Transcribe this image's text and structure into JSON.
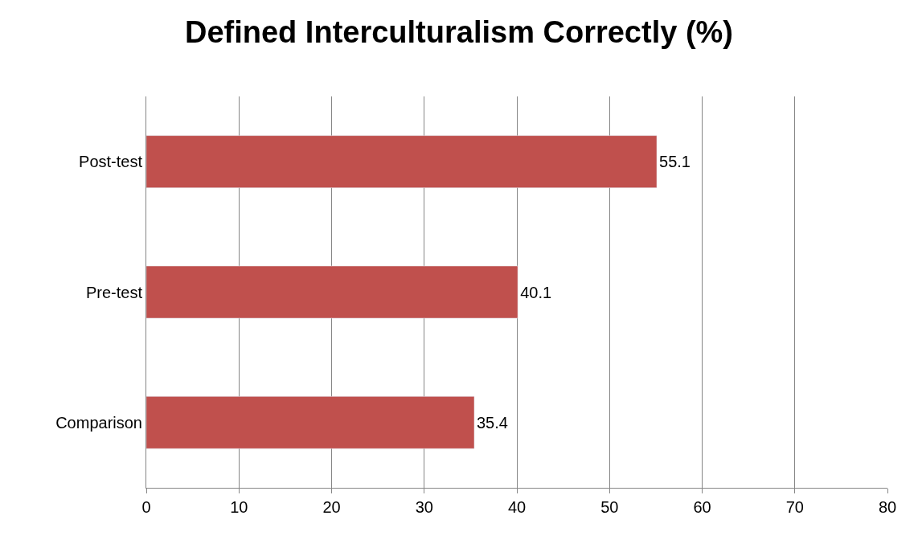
{
  "chart_data": {
    "type": "bar",
    "title": "Defined Interculturalism Correctly (%)",
    "orientation": "horizontal",
    "categories": [
      "Post-test",
      "Pre-test",
      "Comparison"
    ],
    "values": [
      55.1,
      40.1,
      35.4
    ],
    "color": "#c0504d",
    "xlim": [
      0,
      80
    ],
    "xticks": [
      0,
      10,
      20,
      30,
      40,
      50,
      60,
      70,
      80
    ],
    "grid": "x",
    "data_labels": true,
    "legend": false
  }
}
